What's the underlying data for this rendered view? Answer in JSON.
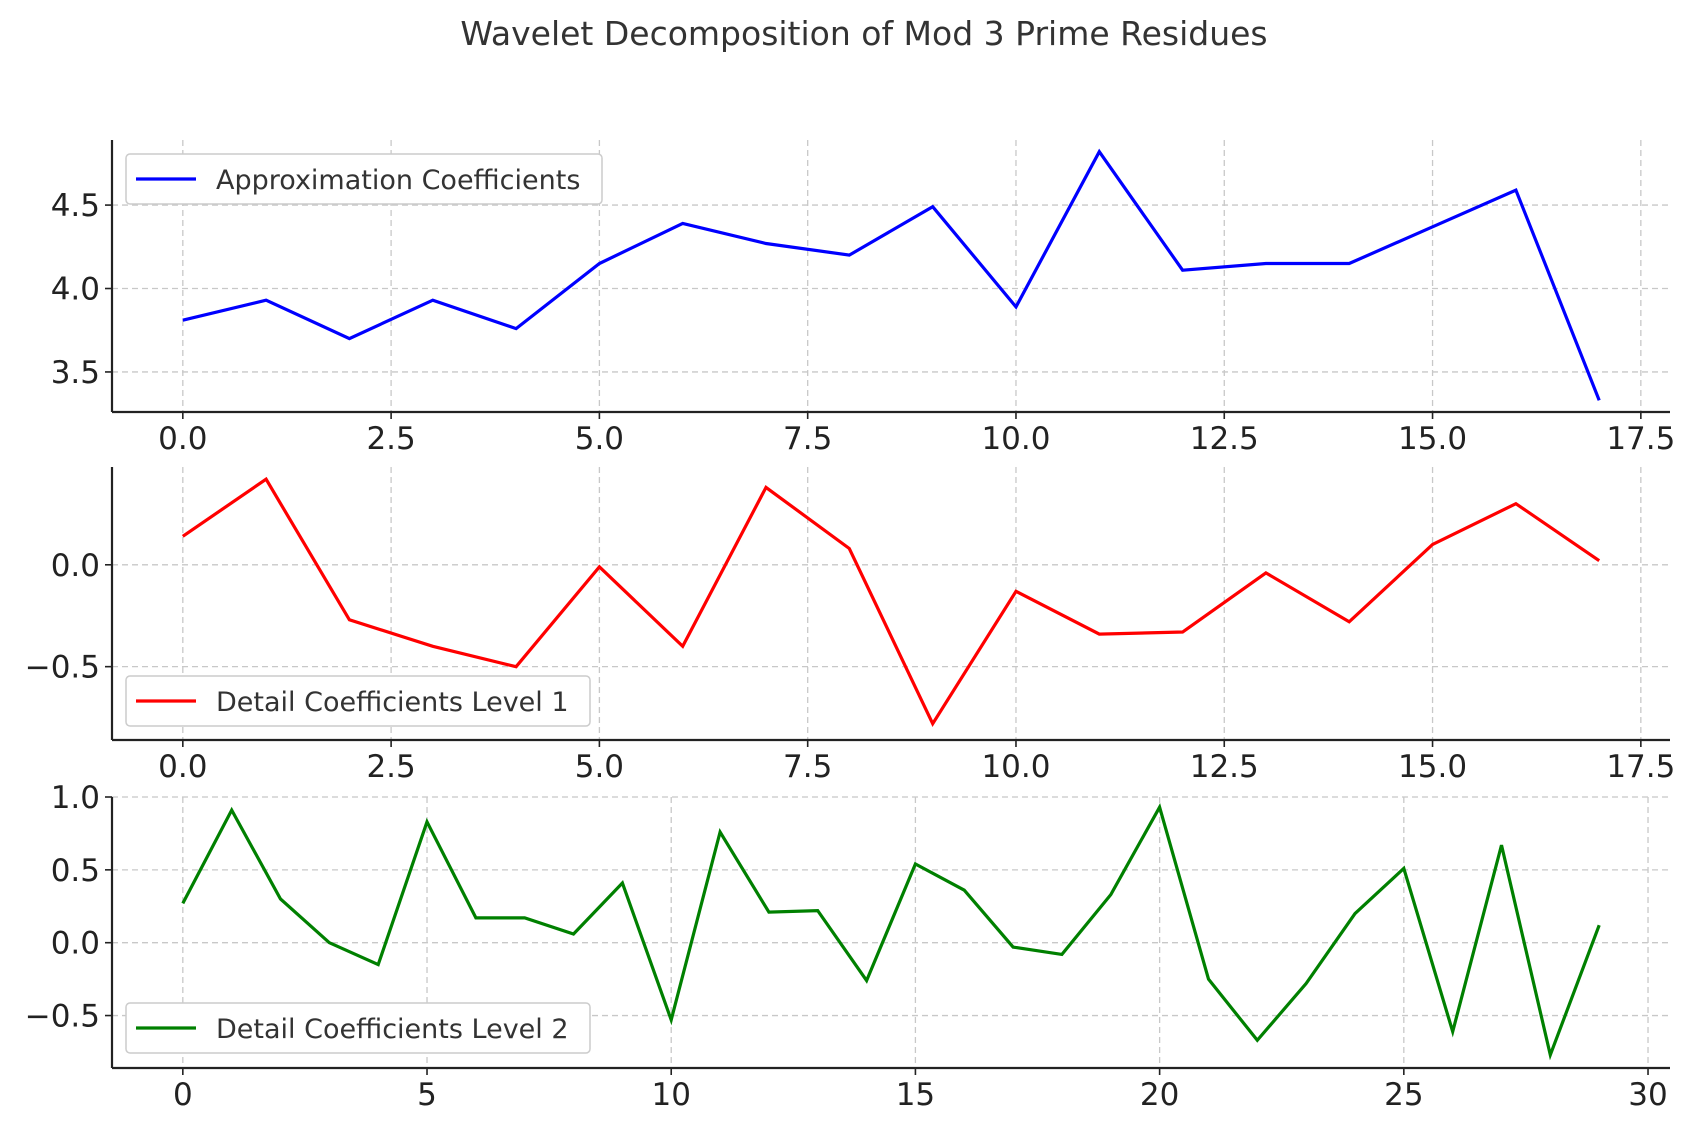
{
  "figure": {
    "title": "Wavelet Decomposition of Mod 3 Prime Residues"
  },
  "chart_data": [
    {
      "type": "line",
      "xlabel": "",
      "ylabel": "",
      "xlim": [
        -0.85,
        17.85
      ],
      "ylim": [
        3.26,
        4.89
      ],
      "xticks": [
        "0.0",
        "2.5",
        "5.0",
        "7.5",
        "10.0",
        "12.5",
        "15.0",
        "17.5"
      ],
      "xtick_values": [
        0,
        2.5,
        5,
        7.5,
        10,
        12.5,
        15,
        17.5
      ],
      "yticks": [
        "3.5",
        "4.0",
        "4.5"
      ],
      "ytick_values": [
        3.5,
        4.0,
        4.5
      ],
      "grid": true,
      "legend_position": "top-left",
      "series": [
        {
          "name": "Approximation Coefficients",
          "color": "#0000ff",
          "x": [
            0,
            1,
            2,
            3,
            4,
            5,
            6,
            7,
            8,
            9,
            10,
            11,
            12,
            13,
            14,
            15,
            16,
            17
          ],
          "values": [
            3.81,
            3.93,
            3.7,
            3.93,
            3.76,
            4.15,
            4.39,
            4.27,
            4.2,
            4.49,
            3.89,
            4.82,
            4.11,
            4.15,
            4.15,
            4.37,
            4.59,
            3.33
          ]
        }
      ]
    },
    {
      "type": "line",
      "xlabel": "",
      "ylabel": "",
      "xlim": [
        -0.85,
        17.85
      ],
      "ylim": [
        -0.86,
        0.48
      ],
      "xticks": [
        "0.0",
        "2.5",
        "5.0",
        "7.5",
        "10.0",
        "12.5",
        "15.0",
        "17.5"
      ],
      "xtick_values": [
        0,
        2.5,
        5,
        7.5,
        10,
        12.5,
        15,
        17.5
      ],
      "yticks": [
        "−0.5",
        "0.0"
      ],
      "ytick_values": [
        -0.5,
        0.0
      ],
      "grid": true,
      "legend_position": "bottom-left",
      "series": [
        {
          "name": "Detail Coefficients Level 1",
          "color": "#ff0000",
          "x": [
            0,
            1,
            2,
            3,
            4,
            5,
            6,
            7,
            8,
            9,
            10,
            11,
            12,
            13,
            14,
            15,
            16,
            17
          ],
          "values": [
            0.14,
            0.42,
            -0.27,
            -0.4,
            -0.5,
            -0.01,
            -0.4,
            0.38,
            0.08,
            -0.78,
            -0.13,
            -0.34,
            -0.33,
            -0.04,
            -0.28,
            0.1,
            0.3,
            0.02
          ]
        }
      ]
    },
    {
      "type": "line",
      "xlabel": "",
      "ylabel": "",
      "xlim": [
        -1.45,
        30.45
      ],
      "ylim": [
        -0.86,
        1.0
      ],
      "xticks": [
        "0",
        "5",
        "10",
        "15",
        "20",
        "25",
        "30"
      ],
      "xtick_values": [
        0,
        5,
        10,
        15,
        20,
        25,
        30
      ],
      "yticks": [
        "−0.5",
        "0.0",
        "0.5",
        "1.0"
      ],
      "ytick_values": [
        -0.5,
        0.0,
        0.5,
        1.0
      ],
      "grid": true,
      "legend_position": "bottom-left",
      "series": [
        {
          "name": "Detail Coefficients Level 2",
          "color": "#008000",
          "x": [
            0,
            1,
            2,
            3,
            4,
            5,
            6,
            7,
            8,
            9,
            10,
            11,
            12,
            13,
            14,
            15,
            16,
            17,
            18,
            19,
            20,
            21,
            22,
            23,
            24,
            25,
            26,
            27,
            28,
            29
          ],
          "values": [
            0.27,
            0.91,
            0.3,
            0.0,
            -0.15,
            0.83,
            0.17,
            0.17,
            0.06,
            0.41,
            -0.53,
            0.76,
            0.21,
            0.22,
            -0.26,
            0.54,
            0.36,
            -0.03,
            -0.08,
            0.33,
            0.93,
            -0.25,
            -0.67,
            -0.28,
            0.2,
            0.51,
            -0.61,
            0.67,
            -0.77,
            0.12
          ]
        }
      ]
    }
  ]
}
